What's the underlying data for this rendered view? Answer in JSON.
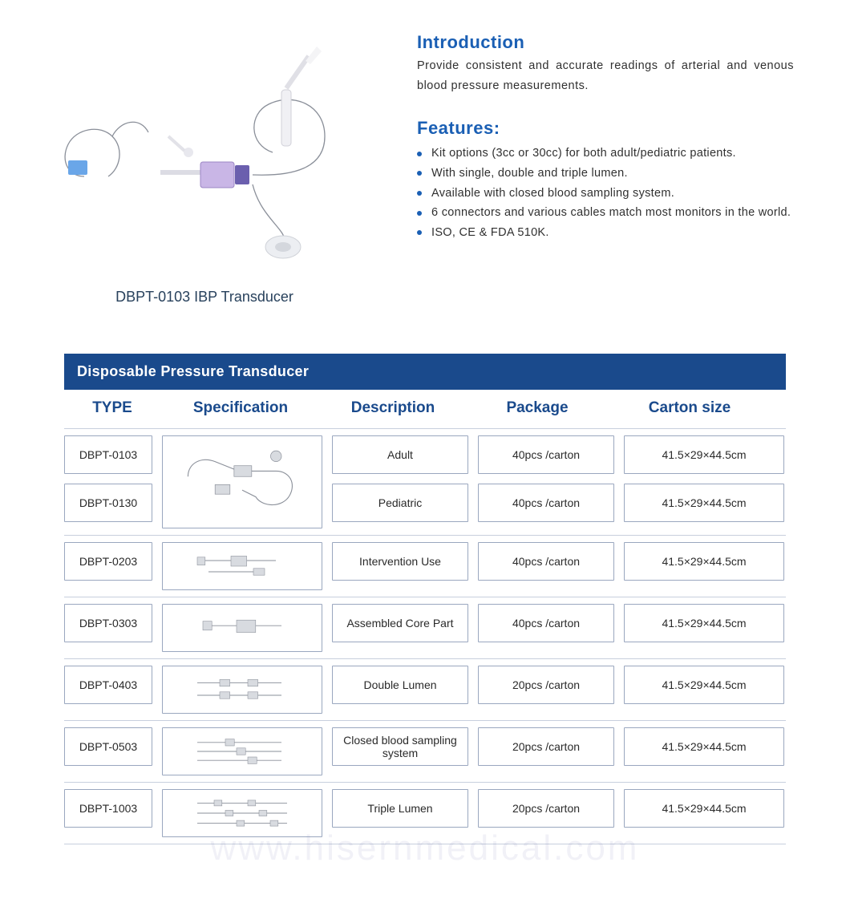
{
  "colors": {
    "accent_blue": "#1a5fb4",
    "bar_blue": "#1a4a8c",
    "border_gray": "#9aa7bf",
    "divider_gray": "#c7cfdd",
    "caption_color": "#28415c",
    "text_color": "#303030"
  },
  "product": {
    "caption": "DBPT-0103 IBP Transducer"
  },
  "intro": {
    "title": "Introduction",
    "body": "Provide consistent and accurate readings of arterial and venous blood pressure measurements."
  },
  "features": {
    "title": "Features:",
    "items": [
      "Kit options (3cc or 30cc) for both adult/pediatric patients.",
      "With single, double and triple lumen.",
      "Available with closed blood sampling system.",
      "6 connectors and various cables match most monitors in the world.",
      "ISO, CE & FDA 510K."
    ]
  },
  "table": {
    "title": "Disposable Pressure Transducer",
    "headers": {
      "type": "TYPE",
      "spec": "Specification",
      "desc": "Description",
      "pkg": "Package",
      "cart": "Carton  size"
    },
    "groups": [
      {
        "shared_spec": true,
        "rows": [
          {
            "type": "DBPT-0103",
            "desc": "Adult",
            "pkg": "40pcs /carton",
            "cart": "41.5×29×44.5cm"
          },
          {
            "type": "DBPT-0130",
            "desc": "Pediatric",
            "pkg": "40pcs /carton",
            "cart": "41.5×29×44.5cm"
          }
        ]
      },
      {
        "shared_spec": false,
        "rows": [
          {
            "type": "DBPT-0203",
            "desc": "Intervention Use",
            "pkg": "40pcs /carton",
            "cart": "41.5×29×44.5cm"
          }
        ]
      },
      {
        "shared_spec": false,
        "rows": [
          {
            "type": "DBPT-0303",
            "desc": "Assembled Core Part",
            "pkg": "40pcs /carton",
            "cart": "41.5×29×44.5cm"
          }
        ]
      },
      {
        "shared_spec": false,
        "rows": [
          {
            "type": "DBPT-0403",
            "desc": "Double Lumen",
            "pkg": "20pcs /carton",
            "cart": "41.5×29×44.5cm"
          }
        ]
      },
      {
        "shared_spec": false,
        "rows": [
          {
            "type": "DBPT-0503",
            "desc": "Closed blood sampling system",
            "pkg": "20pcs /carton",
            "cart": "41.5×29×44.5cm"
          }
        ]
      },
      {
        "shared_spec": false,
        "rows": [
          {
            "type": "DBPT-1003",
            "desc": "Triple Lumen",
            "pkg": "20pcs /carton",
            "cart": "41.5×29×44.5cm"
          }
        ]
      }
    ]
  },
  "watermark": "www.hisernmedical.com"
}
